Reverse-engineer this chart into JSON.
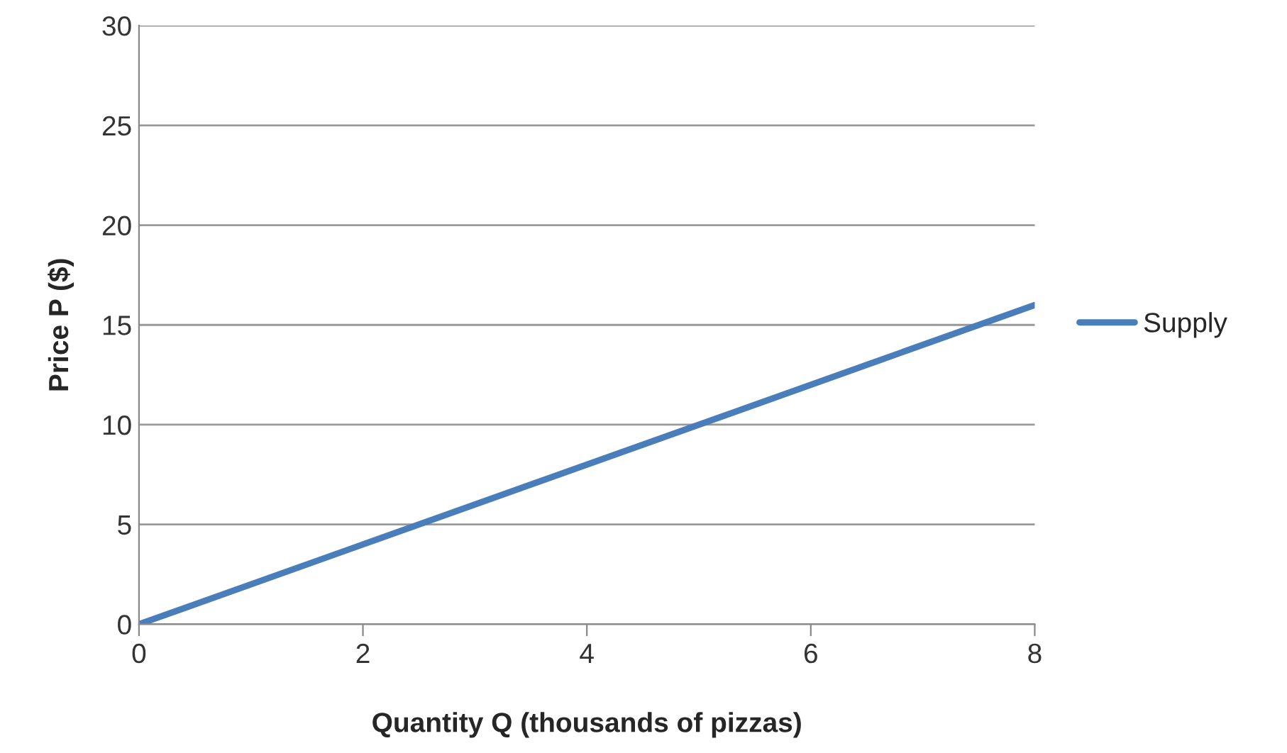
{
  "chart_data": {
    "type": "line",
    "xlabel": "Quantity Q (thousands of pizzas)",
    "ylabel": "Price P ($)",
    "x": [
      0,
      8
    ],
    "series": [
      {
        "name": "Supply",
        "color": "#4a7ebb",
        "values": [
          0,
          16
        ]
      }
    ],
    "xlim": [
      0,
      8
    ],
    "xticks": [
      0,
      2,
      4,
      6,
      8
    ],
    "ylim": [
      0,
      30
    ],
    "yticks": [
      0,
      5,
      10,
      15,
      20,
      25,
      30
    ],
    "grid": "y",
    "legend": "right",
    "marker": "none",
    "line_style": "solid"
  }
}
